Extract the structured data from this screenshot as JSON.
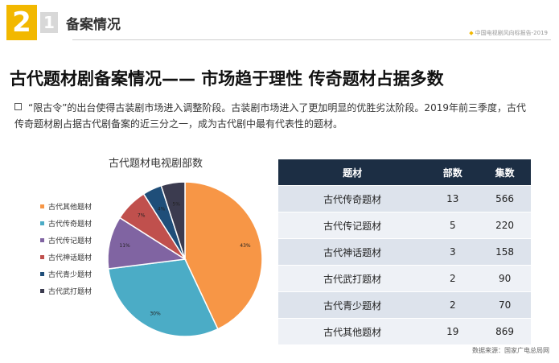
{
  "header": {
    "number_main": "2",
    "number_sub": "1",
    "section_title": "备案情况",
    "report_source": "中国电视剧风向标报告-2019"
  },
  "main_title": "古代题材剧备案情况—— 市场趋于理性  传奇题材占据多数",
  "description": "“限古令”的出台使得古装剧市场进入调整阶段。古装剧市场进入了更加明显的优胜劣汰阶段。2019年前三季度，古代传奇题材剧占据古代剧备案的近三分之一，成为古代剧中最有代表性的题材。",
  "chart_data": [
    {
      "type": "pie",
      "title": "古代题材电视剧部数",
      "categories": [
        "古代其他题材",
        "古代传奇题材",
        "古代传记题材",
        "古代神话题材",
        "古代青少题材",
        "古代武打题材"
      ],
      "values": [
        43,
        30,
        11,
        7,
        4,
        5
      ],
      "value_labels": [
        "43%",
        "30%",
        "11%",
        "7%",
        "4%",
        "5%"
      ],
      "colors": [
        "#f79646",
        "#4bacc6",
        "#8064a2",
        "#c0504d",
        "#1f4e79",
        "#3b3b4f"
      ],
      "legend": "left"
    },
    {
      "type": "table",
      "columns": [
        "题材",
        "部数",
        "集数"
      ],
      "rows": [
        [
          "古代传奇题材",
          "13",
          "566"
        ],
        [
          "古代传记题材",
          "5",
          "220"
        ],
        [
          "古代神话题材",
          "3",
          "158"
        ],
        [
          "古代武打题材",
          "2",
          "90"
        ],
        [
          "古代青少题材",
          "2",
          "70"
        ],
        [
          "古代其他题材",
          "19",
          "869"
        ]
      ]
    }
  ],
  "data_source": "数据来源：国家广电总局网"
}
